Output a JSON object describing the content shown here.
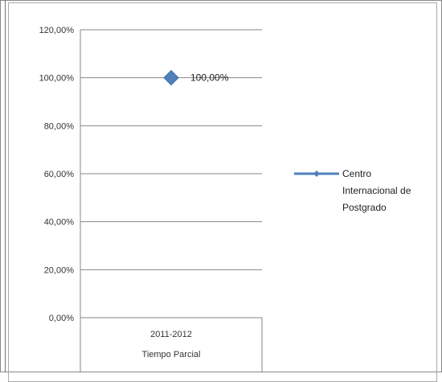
{
  "chart_data": {
    "type": "line",
    "categories": [
      "2011-2012\nTiempo Parcial"
    ],
    "category_lines": [
      "2011-2012",
      "Tiempo Parcial"
    ],
    "series": [
      {
        "name": "Centro Internacional de Postgrado",
        "values": [
          1.0
        ],
        "data_labels": [
          "100,00%"
        ]
      }
    ],
    "ylim": [
      0,
      1.2
    ],
    "y_ticks": [
      "0,00%",
      "20,00%",
      "40,00%",
      "60,00%",
      "80,00%",
      "100,00%",
      "120,00%"
    ],
    "y_tick_values": [
      0,
      0.2,
      0.4,
      0.6,
      0.8,
      1.0,
      1.2
    ],
    "grid": true,
    "legend_position": "right",
    "legend_lines": [
      "Centro",
      "Internacional de",
      "Postgrado"
    ],
    "colors": {
      "series": "#4F81BD",
      "grid": "#868686",
      "axis": "#868686"
    }
  }
}
